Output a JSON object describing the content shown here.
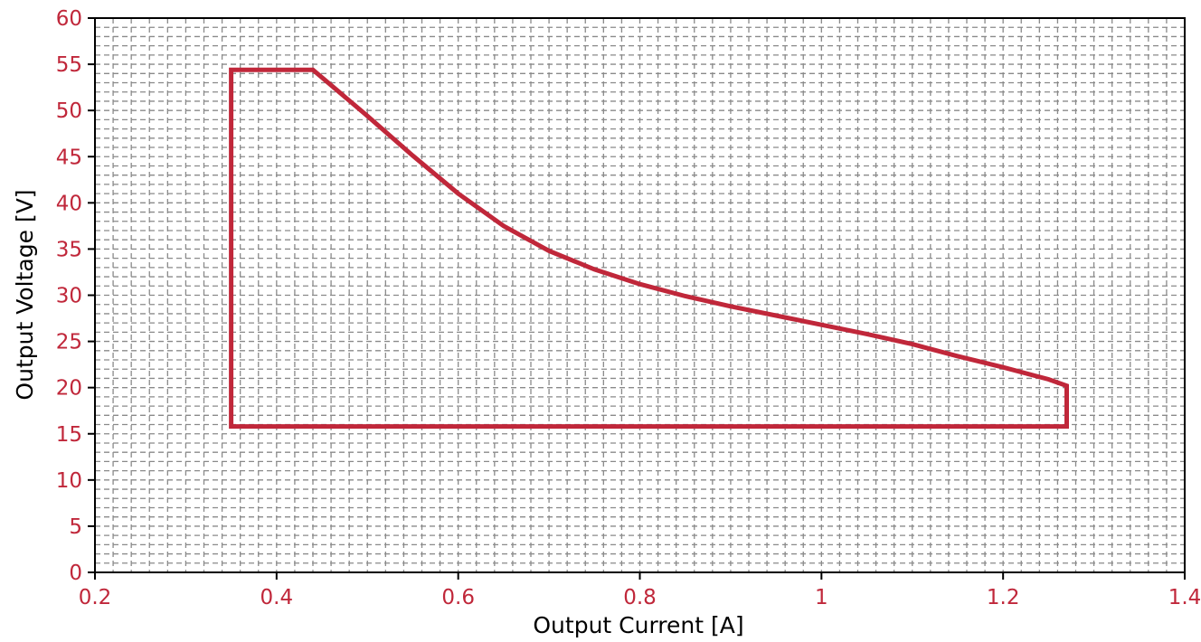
{
  "chart_data": {
    "type": "line",
    "title": "",
    "xlabel": "Output Current [A]",
    "ylabel": "Output Voltage [V]",
    "xlim": [
      0.2,
      1.4
    ],
    "ylim": [
      0,
      60
    ],
    "x_ticks": [
      "0.2",
      "0.4",
      "0.6",
      "0.8",
      "1",
      "1.2",
      "1.4"
    ],
    "y_ticks": [
      "0",
      "5",
      "10",
      "15",
      "20",
      "25",
      "30",
      "35",
      "40",
      "45",
      "50",
      "55",
      "60"
    ],
    "grid": true,
    "legend": "none",
    "series": [
      {
        "x": [
          0.35,
          0.35,
          0.44,
          0.5,
          0.55,
          0.6,
          0.65,
          0.7,
          0.75,
          0.8,
          0.85,
          0.9,
          0.95,
          1.0,
          1.05,
          1.1,
          1.15,
          1.2,
          1.25,
          1.27,
          1.27,
          0.35
        ],
        "y": [
          15.8,
          54.4,
          54.4,
          49.4,
          45.1,
          41.0,
          37.5,
          34.8,
          32.8,
          31.2,
          29.9,
          28.8,
          27.8,
          26.8,
          25.8,
          24.7,
          23.4,
          22.2,
          20.9,
          20.2,
          15.8,
          15.8
        ]
      }
    ],
    "colors": {
      "line": "#c0273a",
      "tick_labels": "#c0273a",
      "grid": "#8a8a8a",
      "frame": "#000000"
    }
  }
}
